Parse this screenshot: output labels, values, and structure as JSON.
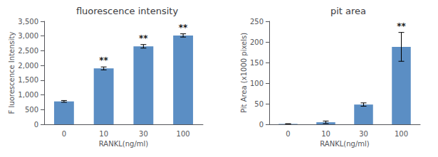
{
  "chart_data": [
    {
      "type": "bar",
      "title": "fluorescence intensity",
      "xlabel": "RANKL(ng/ml)",
      "ylabel": "F luorescence Intensity",
      "categories": [
        "0",
        "10",
        "30",
        "100"
      ],
      "values": [
        780,
        1900,
        2650,
        3020
      ],
      "errors": [
        30,
        50,
        60,
        55
      ],
      "color": "#5b8ec4",
      "ylim": [
        0,
        3500
      ],
      "yticks": [
        0,
        500,
        1000,
        1500,
        2000,
        2500,
        3000,
        3500
      ],
      "grid": false,
      "annotations": [
        {
          "x": "10",
          "text": "**",
          "color": "#1a1a1a"
        },
        {
          "x": "30",
          "text": "**",
          "color": "#1a1a1a"
        },
        {
          "x": "100",
          "text": "**",
          "color": "#1a1a1a"
        }
      ]
    },
    {
      "type": "bar",
      "title": "pit area",
      "xlabel": "RANKL(ng/ml)",
      "ylabel": "Pit Area (x1000 pixels)",
      "categories": [
        "0",
        "10",
        "30",
        "100"
      ],
      "values": [
        1,
        5,
        48,
        188
      ],
      "errors": [
        0.5,
        3,
        4,
        35
      ],
      "color": "#5b8ec4",
      "ylim": [
        0,
        250
      ],
      "yticks": [
        0,
        50,
        100,
        150,
        200,
        250
      ],
      "grid": false,
      "annotations": [
        {
          "x": "100",
          "text": "**",
          "color": "#1a1a1a"
        }
      ]
    }
  ]
}
